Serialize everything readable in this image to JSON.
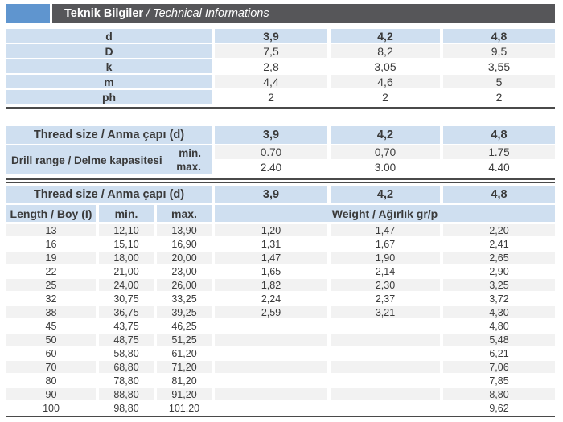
{
  "header": {
    "title_tr": "Teknik Bilgiler",
    "separator": "/",
    "title_en": "Technical Informations"
  },
  "colors": {
    "accent_blue": "#5f95cf",
    "titlebar_gray": "#565659",
    "cell_blue": "#cfdff0",
    "cell_gray": "#f2f2f2",
    "rule_dark": "#4a4a4a"
  },
  "table1": {
    "rows": [
      {
        "label": "d",
        "values": [
          "3,9",
          "4,2",
          "4,8"
        ]
      },
      {
        "label": "D",
        "values": [
          "7,5",
          "8,2",
          "9,5"
        ]
      },
      {
        "label": "k",
        "values": [
          "2,8",
          "3,05",
          "3,55"
        ]
      },
      {
        "label": "m",
        "values": [
          "4,4",
          "4,6",
          "5"
        ]
      },
      {
        "label": "ph",
        "values": [
          "2",
          "2",
          "2"
        ]
      }
    ]
  },
  "table2": {
    "header_label": "Thread size / Anma çapı (d)",
    "header_values": [
      "3,9",
      "4,2",
      "4,8"
    ],
    "range_label": "Drill range / Delme kapasitesi",
    "min_label": "min.",
    "max_label": "max.",
    "min_values": [
      "0.70",
      "0,70",
      "1.75"
    ],
    "max_values": [
      "2.40",
      "3.00",
      "4.40"
    ]
  },
  "table3": {
    "header_label": "Thread size / Anma çapı (d)",
    "header_values": [
      "3,9",
      "4,2",
      "4,8"
    ],
    "length_label": "Length / Boy (I)",
    "min_label": "min.",
    "max_label": "max.",
    "weight_label": "Weight / Ağırlık gr/p",
    "rows": [
      {
        "length": "13",
        "min": "12,10",
        "max": "13,90",
        "w1": "1,20",
        "w2": "1,47",
        "w3": "2,20"
      },
      {
        "length": "16",
        "min": "15,10",
        "max": "16,90",
        "w1": "1,31",
        "w2": "1,67",
        "w3": "2,41"
      },
      {
        "length": "19",
        "min": "18,00",
        "max": "20,00",
        "w1": "1,47",
        "w2": "1,90",
        "w3": "2,65"
      },
      {
        "length": "22",
        "min": "21,00",
        "max": "23,00",
        "w1": "1,65",
        "w2": "2,14",
        "w3": "2,90"
      },
      {
        "length": "25",
        "min": "24,00",
        "max": "26,00",
        "w1": "1,82",
        "w2": "2,30",
        "w3": "3,25"
      },
      {
        "length": "32",
        "min": "30,75",
        "max": "33,25",
        "w1": "2,24",
        "w2": "2,37",
        "w3": "3,72"
      },
      {
        "length": "38",
        "min": "36,75",
        "max": "39,25",
        "w1": "2,59",
        "w2": "3,21",
        "w3": "4,30"
      },
      {
        "length": "45",
        "min": "43,75",
        "max": "46,25",
        "w1": "",
        "w2": "",
        "w3": "4,80"
      },
      {
        "length": "50",
        "min": "48,75",
        "max": "51,25",
        "w1": "",
        "w2": "",
        "w3": "5,48"
      },
      {
        "length": "60",
        "min": "58,80",
        "max": "61,20",
        "w1": "",
        "w2": "",
        "w3": "6,21"
      },
      {
        "length": "70",
        "min": "68,80",
        "max": "71,20",
        "w1": "",
        "w2": "",
        "w3": "7,06"
      },
      {
        "length": "80",
        "min": "78,80",
        "max": "81,20",
        "w1": "",
        "w2": "",
        "w3": "7,85"
      },
      {
        "length": "90",
        "min": "88,80",
        "max": "91,20",
        "w1": "",
        "w2": "",
        "w3": "8,80"
      },
      {
        "length": "100",
        "min": "98,80",
        "max": "101,20",
        "w1": "",
        "w2": "",
        "w3": "9,62"
      }
    ]
  }
}
